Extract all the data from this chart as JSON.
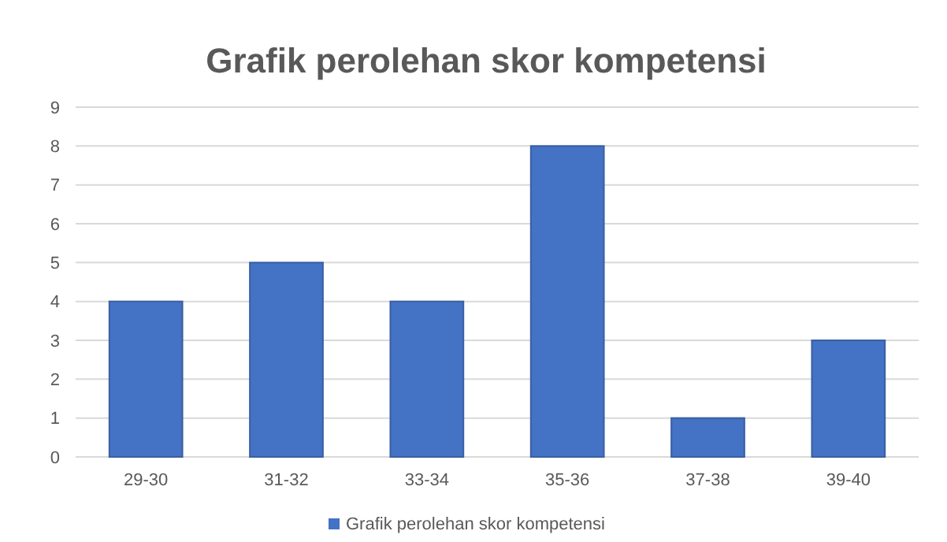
{
  "chart_data": {
    "type": "bar",
    "title": "Grafik perolehan skor kompetensi",
    "categories": [
      "29-30",
      "31-32",
      "33-34",
      "35-36",
      "37-38",
      "39-40"
    ],
    "series": [
      {
        "name": "Grafik perolehan skor kompetensi",
        "color": "#4472c4",
        "values": [
          4,
          5,
          4,
          8,
          1,
          3
        ]
      }
    ],
    "ylim": [
      0,
      9
    ],
    "yticks": [
      0,
      1,
      2,
      3,
      4,
      5,
      6,
      7,
      8,
      9
    ],
    "grid": "y",
    "legend": "bottom"
  }
}
